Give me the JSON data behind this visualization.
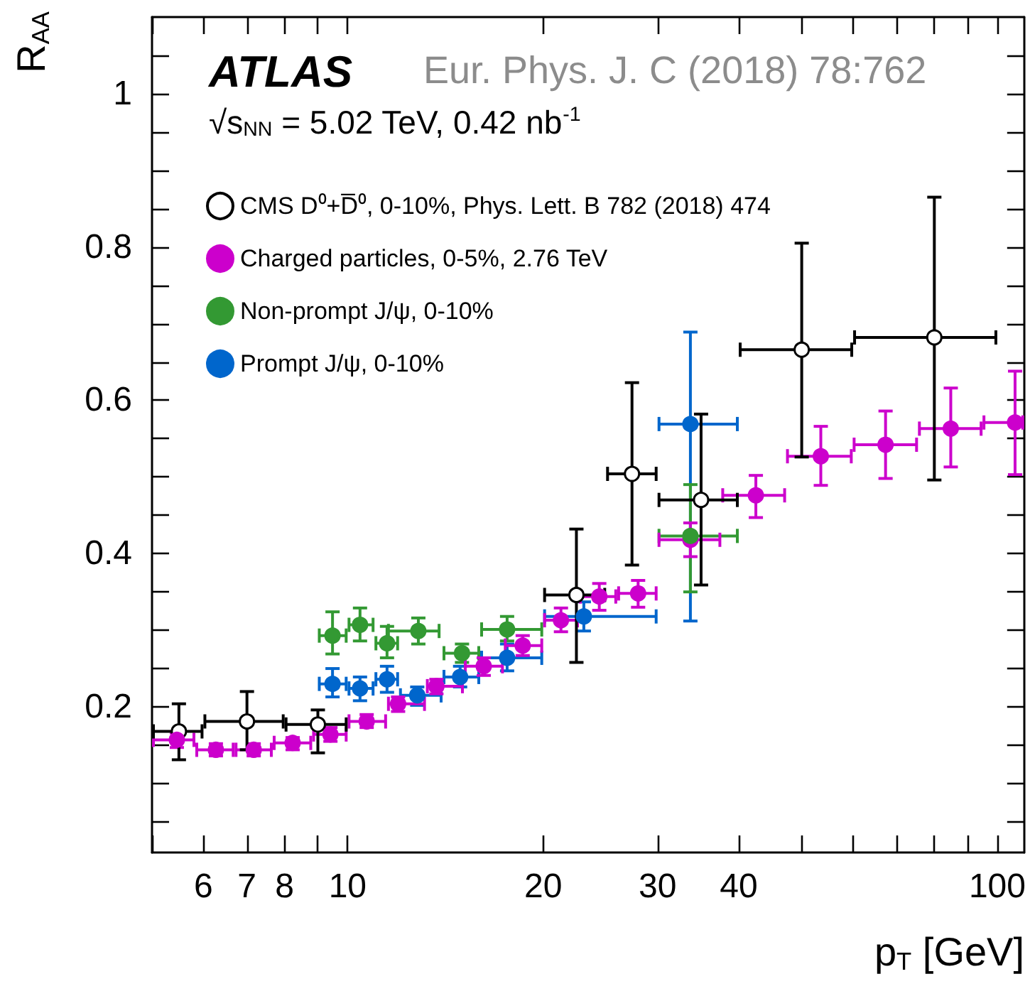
{
  "chart_data": {
    "type": "scatter",
    "title": "ATLAS",
    "subtitle": "√s$_{NN}$ = 5.02 TeV, 0.42 nb$^{-1}$",
    "xlabel": "p$_{T}$ [GeV]",
    "ylabel": "R$_{AA}$",
    "annotations": [
      "Eur. Phys. J. C (2018) 78:762"
    ],
    "log": "x",
    "xlim": [
      5,
      110
    ],
    "ylim": [
      0.01,
      1.1
    ],
    "xticks": [
      {
        "value": 5,
        "label": null
      },
      6,
      7,
      8,
      {
        "value": 9,
        "label": null
      },
      10,
      20,
      30,
      40,
      {
        "value": 50,
        "label": null
      },
      {
        "value": 60,
        "label": null
      },
      {
        "value": 70,
        "label": null
      },
      {
        "value": 80,
        "label": null
      },
      {
        "value": 90,
        "label": null
      },
      100
    ],
    "yticks": [
      {
        "value": 0.05,
        "label": null
      },
      {
        "value": 0.1,
        "label": null
      },
      {
        "value": 0.15,
        "label": null
      },
      0.2,
      {
        "value": 0.25,
        "label": null
      },
      {
        "value": 0.3,
        "label": null
      },
      {
        "value": 0.35,
        "label": null
      },
      0.4,
      {
        "value": 0.45,
        "label": null
      },
      {
        "value": 0.5,
        "label": null
      },
      {
        "value": 0.55,
        "label": null
      },
      0.6,
      {
        "value": 0.65,
        "label": null
      },
      {
        "value": 0.7,
        "label": null
      },
      {
        "value": 0.75,
        "label": null
      },
      0.8,
      {
        "value": 0.85,
        "label": null
      },
      {
        "value": 0.9,
        "label": null
      },
      {
        "value": 0.95,
        "label": null
      },
      1,
      {
        "value": 1.05,
        "label": null
      }
    ],
    "grid": false,
    "legend": "top left",
    "marker": "circle",
    "series": [
      {
        "name": "CMS D⁰+D̅⁰, 0-10%, Phys. Lett. B 782 (2018) 474",
        "color": "#000000",
        "x": [
          5.5,
          7,
          9,
          22.5,
          27.4,
          35,
          50,
          80
        ],
        "values": [
          0.168,
          0.181,
          0.177,
          0.346,
          0.504,
          0.47,
          0.666,
          0.682
        ],
        "errors": [
          [
            0.131,
            0.204
          ],
          [
            0.144,
            0.22
          ],
          [
            0.14,
            0.196
          ],
          [
            0.258,
            0.432
          ],
          [
            0.385,
            0.623
          ],
          [
            0.359,
            0.582
          ],
          [
            0.526,
            0.805
          ],
          [
            0.496,
            0.865
          ]
        ],
        "xerrors": [
          [
            5,
            6
          ],
          [
            6,
            8
          ],
          [
            8,
            10
          ],
          [
            20,
            25
          ],
          [
            25,
            30
          ],
          [
            30,
            40
          ],
          [
            40,
            60
          ],
          [
            60,
            100
          ]
        ]
      },
      {
        "name": "Charged particles, 0-5%, 2.76 TeV",
        "color": "#cc00cc",
        "x": [
          5.46,
          6.27,
          7.17,
          8.23,
          9.41,
          10.7,
          11.96,
          13.7,
          16.2,
          18.6,
          21.3,
          24.4,
          28,
          33.7,
          42.5,
          53.5,
          67.3,
          84.8,
          106.5
        ],
        "values": [
          0.157,
          0.144,
          0.144,
          0.153,
          0.164,
          0.181,
          0.204,
          0.227,
          0.253,
          0.28,
          0.313,
          0.344,
          0.348,
          0.418,
          0.476,
          0.527,
          0.542,
          0.563,
          0.571
        ],
        "xerrors": [
          [
            5,
            5.83
          ],
          [
            5.83,
            6.7
          ],
          [
            6.7,
            7.67
          ],
          [
            7.67,
            8.82
          ],
          [
            8.82,
            10
          ],
          [
            10,
            11.5
          ],
          [
            11.5,
            13.2
          ],
          [
            13.2,
            15.1
          ],
          [
            15.1,
            17.4
          ],
          [
            17.4,
            20
          ],
          [
            20,
            22.7
          ],
          [
            22.7,
            26
          ],
          [
            26,
            30
          ],
          [
            30,
            37.6
          ],
          [
            37.6,
            47.3
          ],
          [
            47.3,
            59.9
          ],
          [
            59.9,
            75.5
          ],
          [
            75.5,
            94.9
          ],
          [
            94.9,
            110
          ]
        ],
        "errors": [
          [
            0.147,
            0.166
          ],
          [
            0.136,
            0.152
          ],
          [
            0.136,
            0.152
          ],
          [
            0.144,
            0.16
          ],
          [
            0.155,
            0.173
          ],
          [
            0.173,
            0.19
          ],
          [
            0.194,
            0.213
          ],
          [
            0.217,
            0.236
          ],
          [
            0.241,
            0.264
          ],
          [
            0.267,
            0.293
          ],
          [
            0.298,
            0.329
          ],
          [
            0.326,
            0.361
          ],
          [
            0.33,
            0.365
          ],
          [
            0.396,
            0.44
          ],
          [
            0.447,
            0.502
          ],
          [
            0.489,
            0.566
          ],
          [
            0.498,
            0.586
          ],
          [
            0.513,
            0.616
          ],
          [
            0.503,
            0.638
          ]
        ]
      },
      {
        "name": "Non-prompt J/ψ, 0-10%",
        "color": "#339933",
        "x": [
          9.48,
          10.45,
          11.5,
          12.85,
          15,
          17.6,
          33.7
        ],
        "values": [
          0.293,
          0.307,
          0.283,
          0.299,
          0.27,
          0.301,
          0.423
        ],
        "errors": [
          [
            0.269,
            0.324
          ],
          [
            0.286,
            0.329
          ],
          [
            0.264,
            0.305
          ],
          [
            0.282,
            0.316
          ],
          [
            0.258,
            0.282
          ],
          [
            0.286,
            0.318
          ],
          [
            0.35,
            0.49
          ]
        ],
        "xerrors": [
          [
            9,
            10
          ],
          [
            10,
            11
          ],
          [
            11,
            12
          ],
          [
            11.5,
            13.9
          ],
          [
            14,
            16
          ],
          [
            16,
            20
          ],
          [
            30,
            40
          ]
        ]
      },
      {
        "name": "Prompt J/ψ, 0-10%",
        "color": "#0066cc",
        "x": [
          9.48,
          10.45,
          11.5,
          12.8,
          14.9,
          17.6,
          23.1,
          33.7
        ],
        "values": [
          0.23,
          0.224,
          0.236,
          0.215,
          0.239,
          0.264,
          0.318,
          0.569
        ],
        "errors": [
          [
            0.213,
            0.25
          ],
          [
            0.208,
            0.239
          ],
          [
            0.219,
            0.253
          ],
          [
            0.202,
            0.226
          ],
          [
            0.226,
            0.253
          ],
          [
            0.247,
            0.282
          ],
          [
            0.299,
            0.337
          ],
          [
            0.312,
            0.689
          ]
        ],
        "xerrors": [
          [
            9,
            10
          ],
          [
            10,
            11
          ],
          [
            11,
            12
          ],
          [
            12,
            14
          ],
          [
            14,
            16
          ],
          [
            16,
            20
          ],
          [
            20,
            30
          ],
          [
            30,
            40
          ]
        ]
      }
    ]
  }
}
